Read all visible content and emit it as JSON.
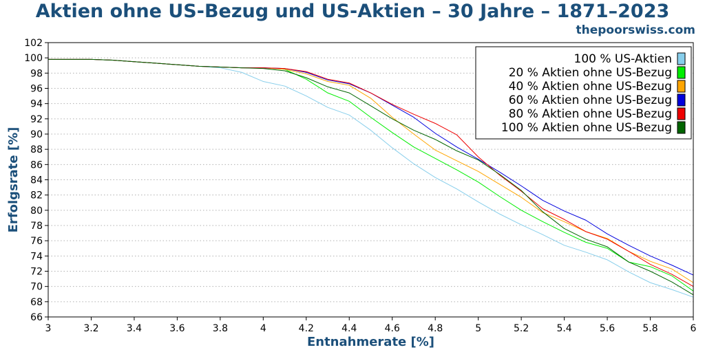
{
  "site": "thepoorswiss.com",
  "chart_data": {
    "type": "line",
    "title": "Aktien ohne US-Bezug und US-Aktien – 30 Jahre – 1871–2023",
    "xlabel": "Entnahmerate [%]",
    "ylabel": "Erfolgsrate [%]",
    "xlim": [
      3,
      6
    ],
    "ylim": [
      66,
      102
    ],
    "xticks": [
      "3",
      "3.2",
      "3.4",
      "3.6",
      "3.8",
      "4",
      "4.2",
      "4.4",
      "4.6",
      "4.8",
      "5",
      "5.2",
      "5.4",
      "5.6",
      "5.8",
      "6"
    ],
    "yticks": [
      "66",
      "68",
      "70",
      "72",
      "74",
      "76",
      "78",
      "80",
      "82",
      "84",
      "86",
      "88",
      "90",
      "92",
      "94",
      "96",
      "98",
      "100",
      "102"
    ],
    "grid": "horizontal-dotted",
    "legend_position": "top-right",
    "x": [
      3.0,
      3.1,
      3.2,
      3.3,
      3.4,
      3.5,
      3.6,
      3.7,
      3.8,
      3.9,
      4.0,
      4.1,
      4.2,
      4.3,
      4.4,
      4.5,
      4.6,
      4.7,
      4.8,
      4.9,
      5.0,
      5.1,
      5.2,
      5.3,
      5.4,
      5.5,
      5.6,
      5.7,
      5.8,
      5.9,
      6.0
    ],
    "series": [
      {
        "name": "100 % US-Aktien",
        "color": "#87ceeb",
        "values": [
          99.8,
          99.8,
          99.8,
          99.7,
          99.5,
          99.3,
          99.1,
          98.9,
          98.7,
          98.1,
          96.9,
          96.3,
          95.0,
          93.5,
          92.5,
          90.5,
          88.2,
          86.1,
          84.3,
          82.8,
          81.1,
          79.5,
          78.1,
          76.8,
          75.4,
          74.5,
          73.5,
          71.9,
          70.5,
          69.6,
          68.6
        ]
      },
      {
        "name": "20 % Aktien ohne US-Bezug",
        "color": "#00ee00",
        "values": [
          99.8,
          99.8,
          99.8,
          99.7,
          99.5,
          99.3,
          99.1,
          98.9,
          98.8,
          98.7,
          98.7,
          98.5,
          97.2,
          95.4,
          94.3,
          92.2,
          90.2,
          88.3,
          86.8,
          85.3,
          83.7,
          81.8,
          80.0,
          78.5,
          77.1,
          75.8,
          75.0,
          73.2,
          72.6,
          71.4,
          69.4
        ]
      },
      {
        "name": "40 % Aktien ohne US-Bezug",
        "color": "#ffa500",
        "values": [
          99.8,
          99.8,
          99.8,
          99.7,
          99.5,
          99.3,
          99.1,
          98.9,
          98.8,
          98.7,
          98.7,
          98.5,
          97.9,
          96.9,
          96.4,
          94.7,
          92.2,
          90.0,
          87.9,
          86.5,
          85.1,
          83.4,
          81.7,
          79.7,
          78.5,
          77.2,
          76.3,
          74.6,
          73.3,
          72.3,
          70.5
        ]
      },
      {
        "name": "60 % Aktien ohne US-Bezug",
        "color": "#0000dd",
        "values": [
          99.8,
          99.8,
          99.8,
          99.7,
          99.5,
          99.3,
          99.1,
          98.9,
          98.8,
          98.7,
          98.7,
          98.6,
          98.1,
          97.1,
          96.6,
          95.4,
          93.8,
          92.2,
          90.1,
          88.3,
          86.7,
          85.0,
          83.2,
          81.3,
          79.9,
          78.7,
          76.9,
          75.4,
          74.0,
          72.8,
          71.5
        ]
      },
      {
        "name": "80 % Aktien ohne US-Bezug",
        "color": "#ee0000",
        "values": [
          99.8,
          99.8,
          99.8,
          99.7,
          99.5,
          99.3,
          99.1,
          98.9,
          98.8,
          98.7,
          98.7,
          98.6,
          98.2,
          97.2,
          96.7,
          95.4,
          93.9,
          92.6,
          91.4,
          89.9,
          87.0,
          84.6,
          82.5,
          80.2,
          78.8,
          77.2,
          76.2,
          74.6,
          72.9,
          71.6,
          70.0
        ]
      },
      {
        "name": "100 % Aktien ohne US-Bezug",
        "color": "#006400",
        "values": [
          99.8,
          99.8,
          99.8,
          99.7,
          99.5,
          99.3,
          99.1,
          98.9,
          98.8,
          98.7,
          98.6,
          98.3,
          97.4,
          96.2,
          95.4,
          93.7,
          92.0,
          90.5,
          89.3,
          87.8,
          86.6,
          84.7,
          82.6,
          79.8,
          77.6,
          76.2,
          75.2,
          73.2,
          72.0,
          70.6,
          68.9
        ]
      }
    ]
  }
}
